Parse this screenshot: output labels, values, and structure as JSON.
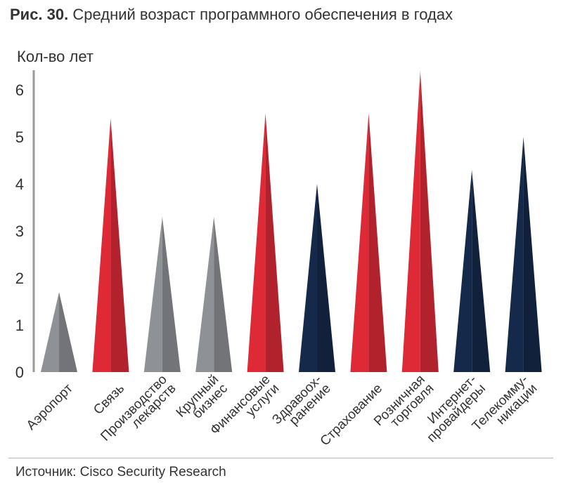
{
  "title": {
    "number": "Рис. 30.",
    "text": "Средний возраст программного обеспечения в годах"
  },
  "source": "Источник: Cisco Security Research",
  "colors": {
    "gray": "#8e9195",
    "red": "#de2a37",
    "navy": "#15294a"
  },
  "chart_data": {
    "type": "bar",
    "title": "Средний возраст программного обеспечения в годах",
    "ylabel": "Кол-во лет",
    "xlabel": "",
    "ylim": [
      0,
      6
    ],
    "yticks": [
      0,
      1,
      2,
      3,
      4,
      5,
      6
    ],
    "grid": false,
    "categories": [
      [
        "Аэропорт"
      ],
      [
        "Связь"
      ],
      [
        "Производство",
        "лекарств"
      ],
      [
        "Крупный",
        "бизнес"
      ],
      [
        "Финансовые",
        "услуги"
      ],
      [
        "Здравоох-",
        "ранение"
      ],
      [
        "Страхование"
      ],
      [
        "Розничная",
        "торговля"
      ],
      [
        "Интернет-",
        "провайдеры"
      ],
      [
        "Телекомму-",
        "никации"
      ]
    ],
    "values": [
      1.7,
      5.4,
      3.3,
      3.3,
      5.5,
      4.0,
      5.5,
      6.4,
      4.3,
      5.0
    ],
    "bar_colors": [
      "gray",
      "red",
      "gray",
      "gray",
      "red",
      "navy",
      "red",
      "red",
      "navy",
      "navy"
    ]
  }
}
